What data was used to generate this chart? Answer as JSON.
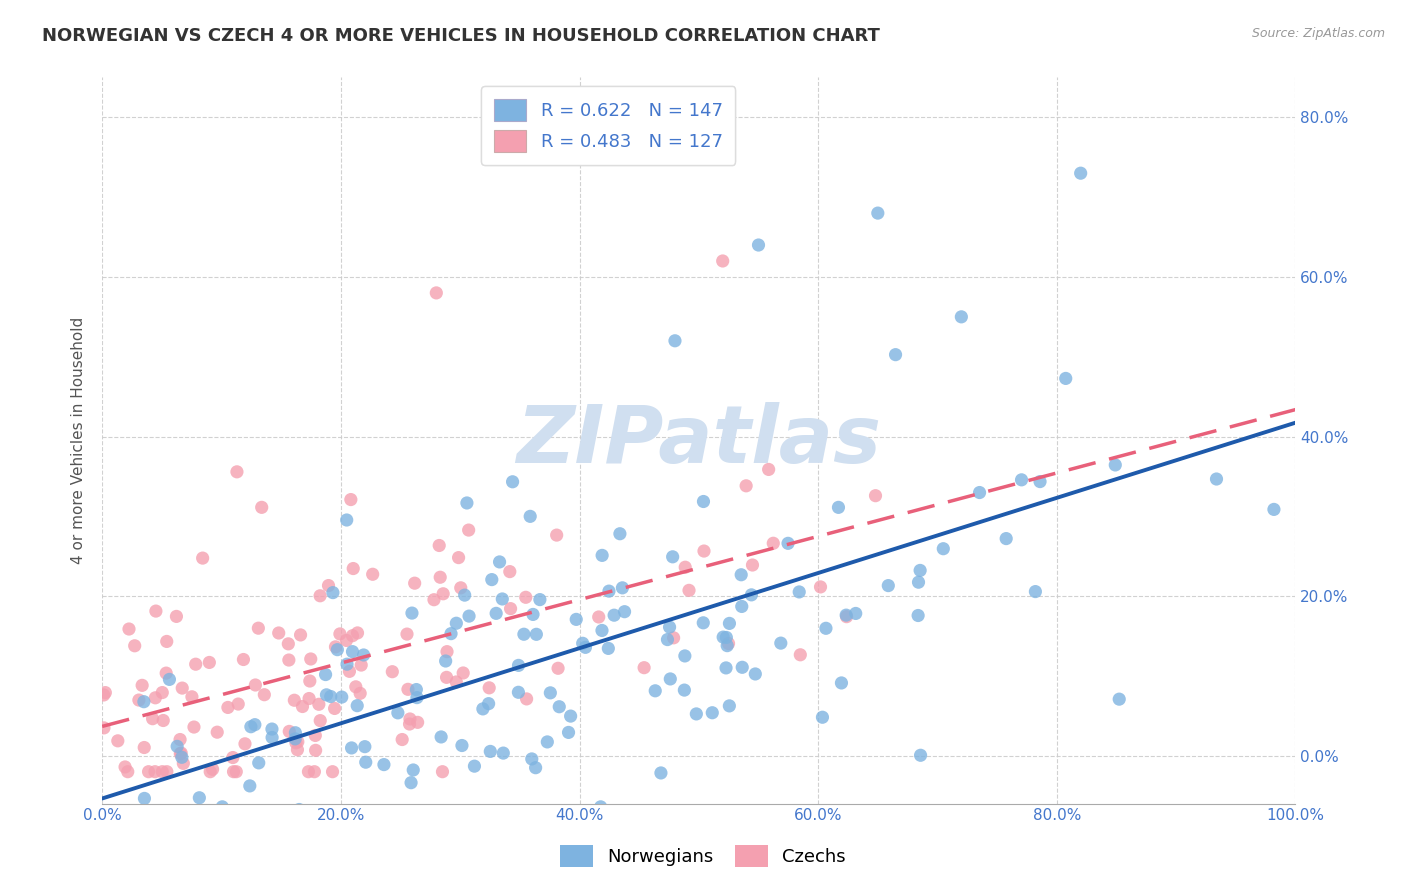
{
  "title": "NORWEGIAN VS CZECH 4 OR MORE VEHICLES IN HOUSEHOLD CORRELATION CHART",
  "source": "Source: ZipAtlas.com",
  "ylabel": "4 or more Vehicles in Household",
  "xlabel": "",
  "norwegian_R": 0.622,
  "norwegian_N": 147,
  "czech_R": 0.483,
  "czech_N": 127,
  "norwegian_color": "#7EB3E0",
  "czech_color": "#F4A0B0",
  "norwegian_line_color": "#1E5AAB",
  "czech_line_color": "#E8607A",
  "background_color": "#ffffff",
  "grid_color": "#cccccc",
  "watermark_text": "ZIPatlas",
  "watermark_color": "#d0dff0",
  "xlim": [
    0,
    1.0
  ],
  "ylim": [
    -0.06,
    0.85
  ],
  "xticks": [
    0.0,
    0.2,
    0.4,
    0.6,
    0.8,
    1.0
  ],
  "yticks": [
    0.0,
    0.2,
    0.4,
    0.6,
    0.8
  ],
  "xtick_labels": [
    "0.0%",
    "20.0%",
    "40.0%",
    "60.0%",
    "80.0%",
    "100.0%"
  ],
  "ytick_labels_right": [
    "0.0%",
    "20.0%",
    "40.0%",
    "60.0%",
    "80.0%"
  ],
  "tick_color": "#4477CC",
  "title_fontsize": 13,
  "label_fontsize": 11,
  "tick_fontsize": 11,
  "legend_fontsize": 13,
  "norwegians_label": "Norwegians",
  "czechs_label": "Czechs",
  "legend_R_N_text_1": "R = 0.622   N = 147",
  "legend_R_N_text_2": "R = 0.483   N = 127"
}
